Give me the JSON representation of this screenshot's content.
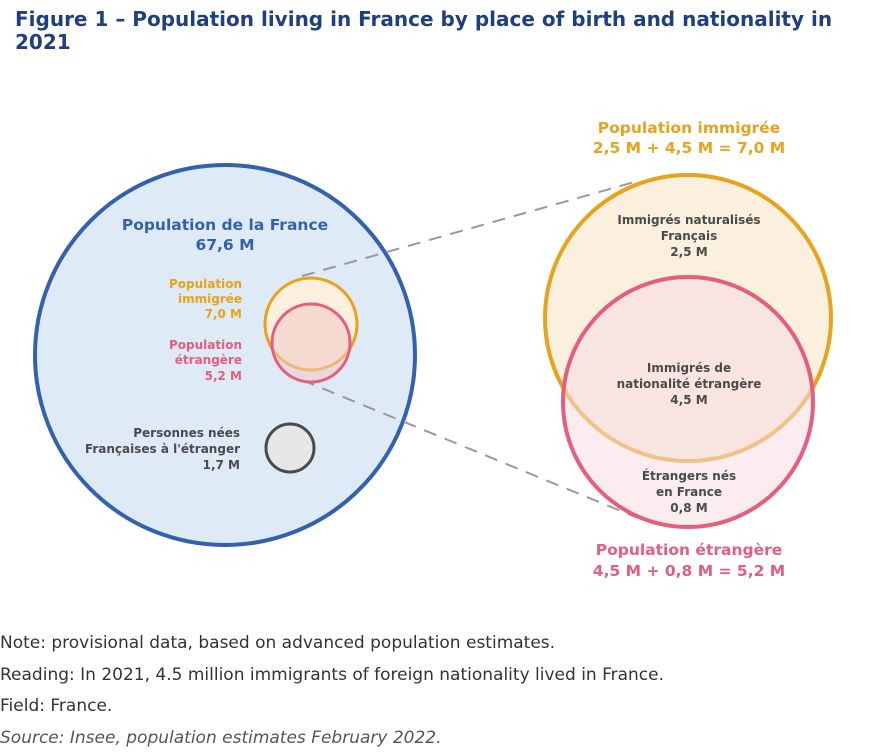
{
  "title": "Figure 1 – Population living in France by place of birth and nationality in 2021",
  "colors": {
    "blue": "#3461ad",
    "blue_fill": "#dfeaf7",
    "orange": "#e8a31c",
    "orange_fill": "#fbefdd",
    "pink": "#e55e7e",
    "pink_fill": "#f6dde2",
    "gray": "#4a4a4a",
    "gray_fill": "#e7e7e7",
    "dark_text": "#4a4a4a",
    "title": "#1f3f82"
  },
  "left": {
    "population_france": {
      "label": "Population de la France",
      "value": "67,6 M"
    },
    "immigree": {
      "line1": "Population",
      "line2": "immigrée",
      "value": "7,0 M"
    },
    "etrangere": {
      "line1": "Population",
      "line2": "étrangère",
      "value": "5,2 M"
    },
    "nees_etranger": {
      "line1": "Personnes nées",
      "line2": "Françaises à l'étranger",
      "value": "1,7 M"
    }
  },
  "right": {
    "immigree_header": {
      "label": "Population immigrée",
      "formula": "2,5 M + 4,5 M = 7,0 M"
    },
    "naturalises": {
      "line1": "Immigrés naturalisés",
      "line2": "Français",
      "value": "2,5 M"
    },
    "nationalite_etrangere": {
      "line1": "Immigrés de",
      "line2": "nationalité étrangère",
      "value": "4,5 M"
    },
    "etrangers_nes_france": {
      "line1": "Étrangers nés",
      "line2": "en France",
      "value": "0,8 M"
    },
    "etrangere_header": {
      "label": "Population étrangère",
      "formula": "4,5 M + 0,8 M = 5,2 M"
    }
  },
  "notes": {
    "note": "Note: provisional data, based on advanced population estimates.",
    "reading": "Reading: In 2021, 4.5 million immigrants of foreign nationality lived in France.",
    "field": "Field: France.",
    "source": "Source: Insee, population estimates February 2022."
  }
}
